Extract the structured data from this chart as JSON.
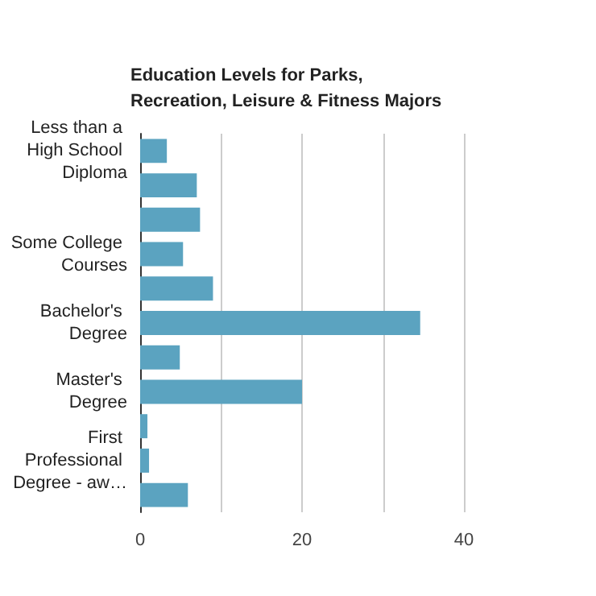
{
  "chart_data": {
    "type": "bar",
    "orientation": "horizontal",
    "title": "Education Levels for Parks, Recreation, Leisure & Fitness Majors",
    "categories": [
      "Less than a High School Diploma",
      null,
      null,
      "Some College Courses",
      null,
      "Bachelor's Degree",
      null,
      "Master's Degree",
      null,
      "First Professional Degree - aw…",
      null
    ],
    "values": [
      3.3,
      7.0,
      7.4,
      5.3,
      9.0,
      34.6,
      4.9,
      20.0,
      0.9,
      1.1,
      5.9
    ],
    "color": "#5ba3c0",
    "xlim": [
      0,
      40
    ],
    "xticks": [
      0,
      {
        "value": 10,
        "label": null
      },
      20,
      {
        "value": 30,
        "label": null
      },
      40
    ],
    "grid": "x"
  }
}
